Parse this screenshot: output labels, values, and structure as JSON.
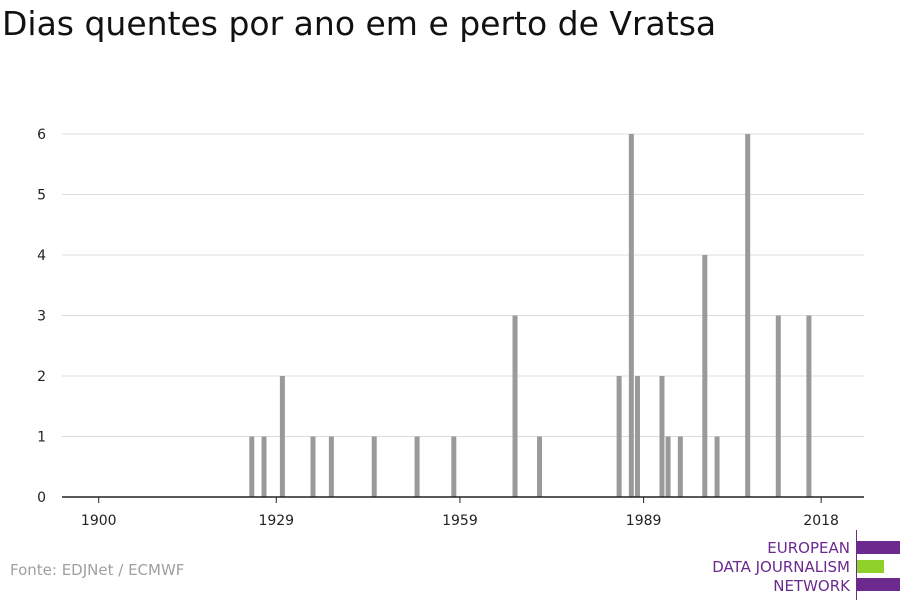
{
  "title": "Dias quentes por ano em e perto de Vratsa",
  "source": "Fonte: EDJNet / ECMWF",
  "logo": {
    "line1": "EUROPEAN",
    "line2": "DATA JOURNALISM",
    "line3": "NETWORK",
    "colors": {
      "primary": "#6c2a8f",
      "accent": "#8ed12a"
    }
  },
  "chart_data": {
    "type": "bar",
    "x_ticks": [
      1900,
      1929,
      1959,
      1989,
      2018
    ],
    "y_ticks": [
      0,
      1,
      2,
      3,
      4,
      5,
      6
    ],
    "xlim": [
      1894,
      2025
    ],
    "ylim": [
      0,
      6
    ],
    "grid": true,
    "bar_color": "#9a9a9a",
    "x": [
      1925,
      1927,
      1930,
      1935,
      1938,
      1945,
      1952,
      1958,
      1968,
      1972,
      1985,
      1987,
      1988,
      1992,
      1993,
      1995,
      1999,
      2001,
      2006,
      2011,
      2016
    ],
    "values": [
      1,
      1,
      2,
      1,
      1,
      1,
      1,
      1,
      3,
      1,
      2,
      6,
      2,
      2,
      1,
      1,
      4,
      1,
      6,
      3,
      3
    ]
  }
}
